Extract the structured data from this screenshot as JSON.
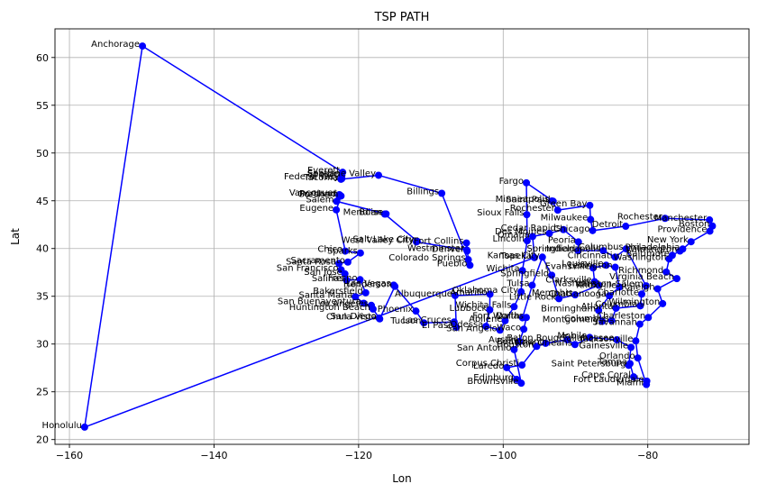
{
  "chart_data": {
    "type": "line",
    "title": "TSP PATH",
    "xlabel": "Lon",
    "ylabel": "Lat",
    "xlim": [
      -162,
      -66
    ],
    "ylim": [
      19.5,
      63
    ],
    "xticks": [
      -160,
      -140,
      -120,
      -100,
      -80
    ],
    "yticks": [
      20,
      25,
      30,
      35,
      40,
      45,
      50,
      55,
      60
    ],
    "grid": true,
    "line_color": "#0000ff",
    "marker_color": "#0000ff",
    "series": [
      {
        "points": [
          {
            "name": "Honolulu",
            "x": -157.9,
            "y": 21.3
          },
          {
            "name": "Anchorage",
            "x": -149.9,
            "y": 61.2
          },
          {
            "name": "Everett",
            "x": -122.2,
            "y": 47.98
          },
          {
            "name": "Seattle",
            "x": -122.33,
            "y": 47.61
          },
          {
            "name": "Federal Way",
            "x": -122.31,
            "y": 47.32
          },
          {
            "name": "Tacoma",
            "x": -122.44,
            "y": 47.25
          },
          {
            "name": "Spokane Valley",
            "x": -117.24,
            "y": 47.67
          },
          {
            "name": "Billings",
            "x": -108.5,
            "y": 45.78
          },
          {
            "name": "Pueblo",
            "x": -104.6,
            "y": 38.25
          },
          {
            "name": "Colorado Springs",
            "x": -104.82,
            "y": 38.83
          },
          {
            "name": "Fort Collins",
            "x": -105.08,
            "y": 40.58
          },
          {
            "name": "Denver",
            "x": -104.99,
            "y": 39.74
          },
          {
            "name": "Westminster",
            "x": -105.04,
            "y": 39.84
          },
          {
            "name": "West Valley City",
            "x": -112.0,
            "y": 40.69
          },
          {
            "name": "Salt Lake City",
            "x": -111.89,
            "y": 40.76
          },
          {
            "name": "Meridian",
            "x": -116.39,
            "y": 43.61
          },
          {
            "name": "Boise",
            "x": -116.2,
            "y": 43.62
          },
          {
            "name": "Salem",
            "x": -123.04,
            "y": 44.94
          },
          {
            "name": "Portland",
            "x": -122.68,
            "y": 45.52
          },
          {
            "name": "Vancouver",
            "x": -122.66,
            "y": 45.64
          },
          {
            "name": "Gresham",
            "x": -122.43,
            "y": 45.5
          },
          {
            "name": "Eugene",
            "x": -123.09,
            "y": 44.05
          },
          {
            "name": "Chico",
            "x": -121.84,
            "y": 39.73
          },
          {
            "name": "Sparks",
            "x": -119.75,
            "y": 39.53
          },
          {
            "name": "Sacramento",
            "x": -121.49,
            "y": 38.58
          },
          {
            "name": "Santa Rosa",
            "x": -122.71,
            "y": 38.44
          },
          {
            "name": "San Francisco",
            "x": -122.42,
            "y": 37.77
          },
          {
            "name": "San Jose",
            "x": -121.89,
            "y": 37.34
          },
          {
            "name": "Salinas",
            "x": -121.66,
            "y": 36.68
          },
          {
            "name": "Fresno",
            "x": -119.79,
            "y": 36.74
          },
          {
            "name": "Bakersfield",
            "x": -119.02,
            "y": 35.37
          },
          {
            "name": "Santa Maria",
            "x": -120.44,
            "y": 34.95
          },
          {
            "name": "San Buenaventura",
            "x": -119.29,
            "y": 34.27
          },
          {
            "name": "Los Angeles",
            "x": -118.24,
            "y": 34.05
          },
          {
            "name": "Huntington Beach",
            "x": -118.0,
            "y": 33.66
          },
          {
            "name": "San Diego",
            "x": -117.16,
            "y": 32.72
          },
          {
            "name": "Chula Vista",
            "x": -117.08,
            "y": 32.64
          },
          {
            "name": "Henderson",
            "x": -114.98,
            "y": 36.04
          },
          {
            "name": "Las Vegas",
            "x": -115.14,
            "y": 36.17
          },
          {
            "name": "Phoenix",
            "x": -112.07,
            "y": 33.45
          },
          {
            "name": "Tucson",
            "x": -110.97,
            "y": 32.22
          },
          {
            "name": "Las Cruces",
            "x": -106.78,
            "y": 32.31
          },
          {
            "name": "El Paso",
            "x": -106.49,
            "y": 31.76
          },
          {
            "name": "Albuquerque",
            "x": -106.65,
            "y": 35.08
          },
          {
            "name": "Amarillo",
            "x": -101.83,
            "y": 35.22
          },
          {
            "name": "Lubbock",
            "x": -101.86,
            "y": 33.58
          },
          {
            "name": "Odessa",
            "x": -102.37,
            "y": 31.85
          },
          {
            "name": "San Angelo",
            "x": -100.44,
            "y": 31.46
          },
          {
            "name": "Abilene",
            "x": -99.73,
            "y": 32.45
          },
          {
            "name": "Wichita Falls",
            "x": -98.49,
            "y": 33.91
          },
          {
            "name": "Oklahoma City",
            "x": -97.52,
            "y": 35.47
          },
          {
            "name": "Wichita",
            "x": -97.34,
            "y": 37.69
          },
          {
            "name": "Lincoln",
            "x": -96.68,
            "y": 40.81
          },
          {
            "name": "Sioux Falls",
            "x": -96.73,
            "y": 43.55
          },
          {
            "name": "Fargo",
            "x": -96.79,
            "y": 46.88
          },
          {
            "name": "Saint Paul",
            "x": -93.09,
            "y": 44.95
          },
          {
            "name": "Minneapolis",
            "x": -93.27,
            "y": 44.98
          },
          {
            "name": "Rochester",
            "x": -92.46,
            "y": 44.02
          },
          {
            "name": "Green Bay",
            "x": -88.02,
            "y": 44.52
          },
          {
            "name": "Milwaukee",
            "x": -87.91,
            "y": 43.04
          },
          {
            "name": "Chicago",
            "x": -87.63,
            "y": 41.88
          },
          {
            "name": "Detroit",
            "x": -83.05,
            "y": 42.33
          },
          {
            "name": "Rochester",
            "x": -77.61,
            "y": 43.16
          },
          {
            "name": "Manchester",
            "x": -71.46,
            "y": 42.99
          },
          {
            "name": "Boston",
            "x": -71.06,
            "y": 42.36
          },
          {
            "name": "Providence",
            "x": -71.41,
            "y": 41.82
          },
          {
            "name": "New York",
            "x": -74.01,
            "y": 40.71
          },
          {
            "name": "Philadelphia",
            "x": -75.17,
            "y": 39.95
          },
          {
            "name": "Wilmington",
            "x": -75.55,
            "y": 39.74
          },
          {
            "name": "Baltimore",
            "x": -76.61,
            "y": 39.29
          },
          {
            "name": "Washington",
            "x": -77.04,
            "y": 38.91
          },
          {
            "name": "Richmond",
            "x": -77.44,
            "y": 37.54
          },
          {
            "name": "Virginia Beach",
            "x": -75.98,
            "y": 36.85
          },
          {
            "name": "Raleigh",
            "x": -78.64,
            "y": 35.78
          },
          {
            "name": "Wilmington",
            "x": -77.94,
            "y": 34.23
          },
          {
            "name": "Charleston",
            "x": -79.93,
            "y": 32.78
          },
          {
            "name": "Savannah",
            "x": -81.1,
            "y": 32.08
          },
          {
            "name": "Jacksonville",
            "x": -81.66,
            "y": 30.33
          },
          {
            "name": "Orlando",
            "x": -81.38,
            "y": 28.54
          },
          {
            "name": "Miami",
            "x": -80.19,
            "y": 25.76
          },
          {
            "name": "Fort Lauderdale",
            "x": -80.14,
            "y": 26.12
          },
          {
            "name": "Cape Coral",
            "x": -81.95,
            "y": 26.56
          },
          {
            "name": "Tampa",
            "x": -82.46,
            "y": 27.95
          },
          {
            "name": "Saint Petersburg",
            "x": -82.64,
            "y": 27.77
          },
          {
            "name": "Gainesville",
            "x": -82.32,
            "y": 29.65
          },
          {
            "name": "Tallahassee",
            "x": -84.28,
            "y": 30.44
          },
          {
            "name": "Mobile",
            "x": -88.04,
            "y": 30.69
          },
          {
            "name": "New Orleans",
            "x": -90.07,
            "y": 29.95
          },
          {
            "name": "Baton Rouge",
            "x": -91.15,
            "y": 30.45
          },
          {
            "name": "Beaumont",
            "x": -94.13,
            "y": 30.08
          },
          {
            "name": "Houston",
            "x": -95.37,
            "y": 29.76
          },
          {
            "name": "Corpus Christi",
            "x": -97.4,
            "y": 27.8
          },
          {
            "name": "Laredo",
            "x": -99.51,
            "y": 27.53
          },
          {
            "name": "Edinburg",
            "x": -98.16,
            "y": 26.3
          },
          {
            "name": "Brownsville",
            "x": -97.5,
            "y": 25.9
          },
          {
            "name": "San Antonio",
            "x": -98.49,
            "y": 29.42
          },
          {
            "name": "Austin",
            "x": -97.74,
            "y": 30.27
          },
          {
            "name": "Waco",
            "x": -97.15,
            "y": 31.55
          },
          {
            "name": "Dallas",
            "x": -96.8,
            "y": 32.78
          },
          {
            "name": "Fort Worth",
            "x": -97.33,
            "y": 32.75
          },
          {
            "name": "Tulsa",
            "x": -95.99,
            "y": 36.15
          },
          {
            "name": "Kansas City",
            "x": -94.58,
            "y": 39.1
          },
          {
            "name": "Springfield",
            "x": -93.29,
            "y": 37.21
          },
          {
            "name": "Little Rock",
            "x": -92.29,
            "y": 34.75
          },
          {
            "name": "Memphis",
            "x": -90.05,
            "y": 35.15
          },
          {
            "name": "Nashville",
            "x": -86.78,
            "y": 36.16
          },
          {
            "name": "Clarksville",
            "x": -87.36,
            "y": 36.53
          },
          {
            "name": "Evansville",
            "x": -87.57,
            "y": 37.97
          },
          {
            "name": "Louisville",
            "x": -85.76,
            "y": 38.25
          },
          {
            "name": "Lexington",
            "x": -84.5,
            "y": 38.04
          },
          {
            "name": "Knoxville",
            "x": -83.92,
            "y": 35.96
          },
          {
            "name": "Chattanooga",
            "x": -85.31,
            "y": 35.05
          },
          {
            "name": "Birmingham",
            "x": -86.8,
            "y": 33.52
          },
          {
            "name": "Montgomery",
            "x": -86.3,
            "y": 32.37
          },
          {
            "name": "Columbus",
            "x": -84.99,
            "y": 32.46
          },
          {
            "name": "Atlanta",
            "x": -84.39,
            "y": 33.75
          },
          {
            "name": "Columbia",
            "x": -81.03,
            "y": 34.0
          },
          {
            "name": "Charlotte",
            "x": -80.84,
            "y": 35.23
          },
          {
            "name": "Winston-Salem",
            "x": -80.24,
            "y": 36.1
          },
          {
            "name": "Columbus",
            "x": -83.0,
            "y": 39.96
          },
          {
            "name": "Cincinnati",
            "x": -84.51,
            "y": 39.1
          },
          {
            "name": "Indianapolis",
            "x": -86.16,
            "y": 39.77
          },
          {
            "name": "Springfield",
            "x": -89.65,
            "y": 39.78
          },
          {
            "name": "Peoria",
            "x": -89.59,
            "y": 40.69
          },
          {
            "name": "Cedar Rapids",
            "x": -91.67,
            "y": 41.98
          },
          {
            "name": "Des Moines",
            "x": -93.61,
            "y": 41.59
          },
          {
            "name": "Omaha",
            "x": -95.93,
            "y": 41.26
          },
          {
            "name": "Topeka",
            "x": -95.68,
            "y": 39.05
          }
        ]
      }
    ]
  }
}
